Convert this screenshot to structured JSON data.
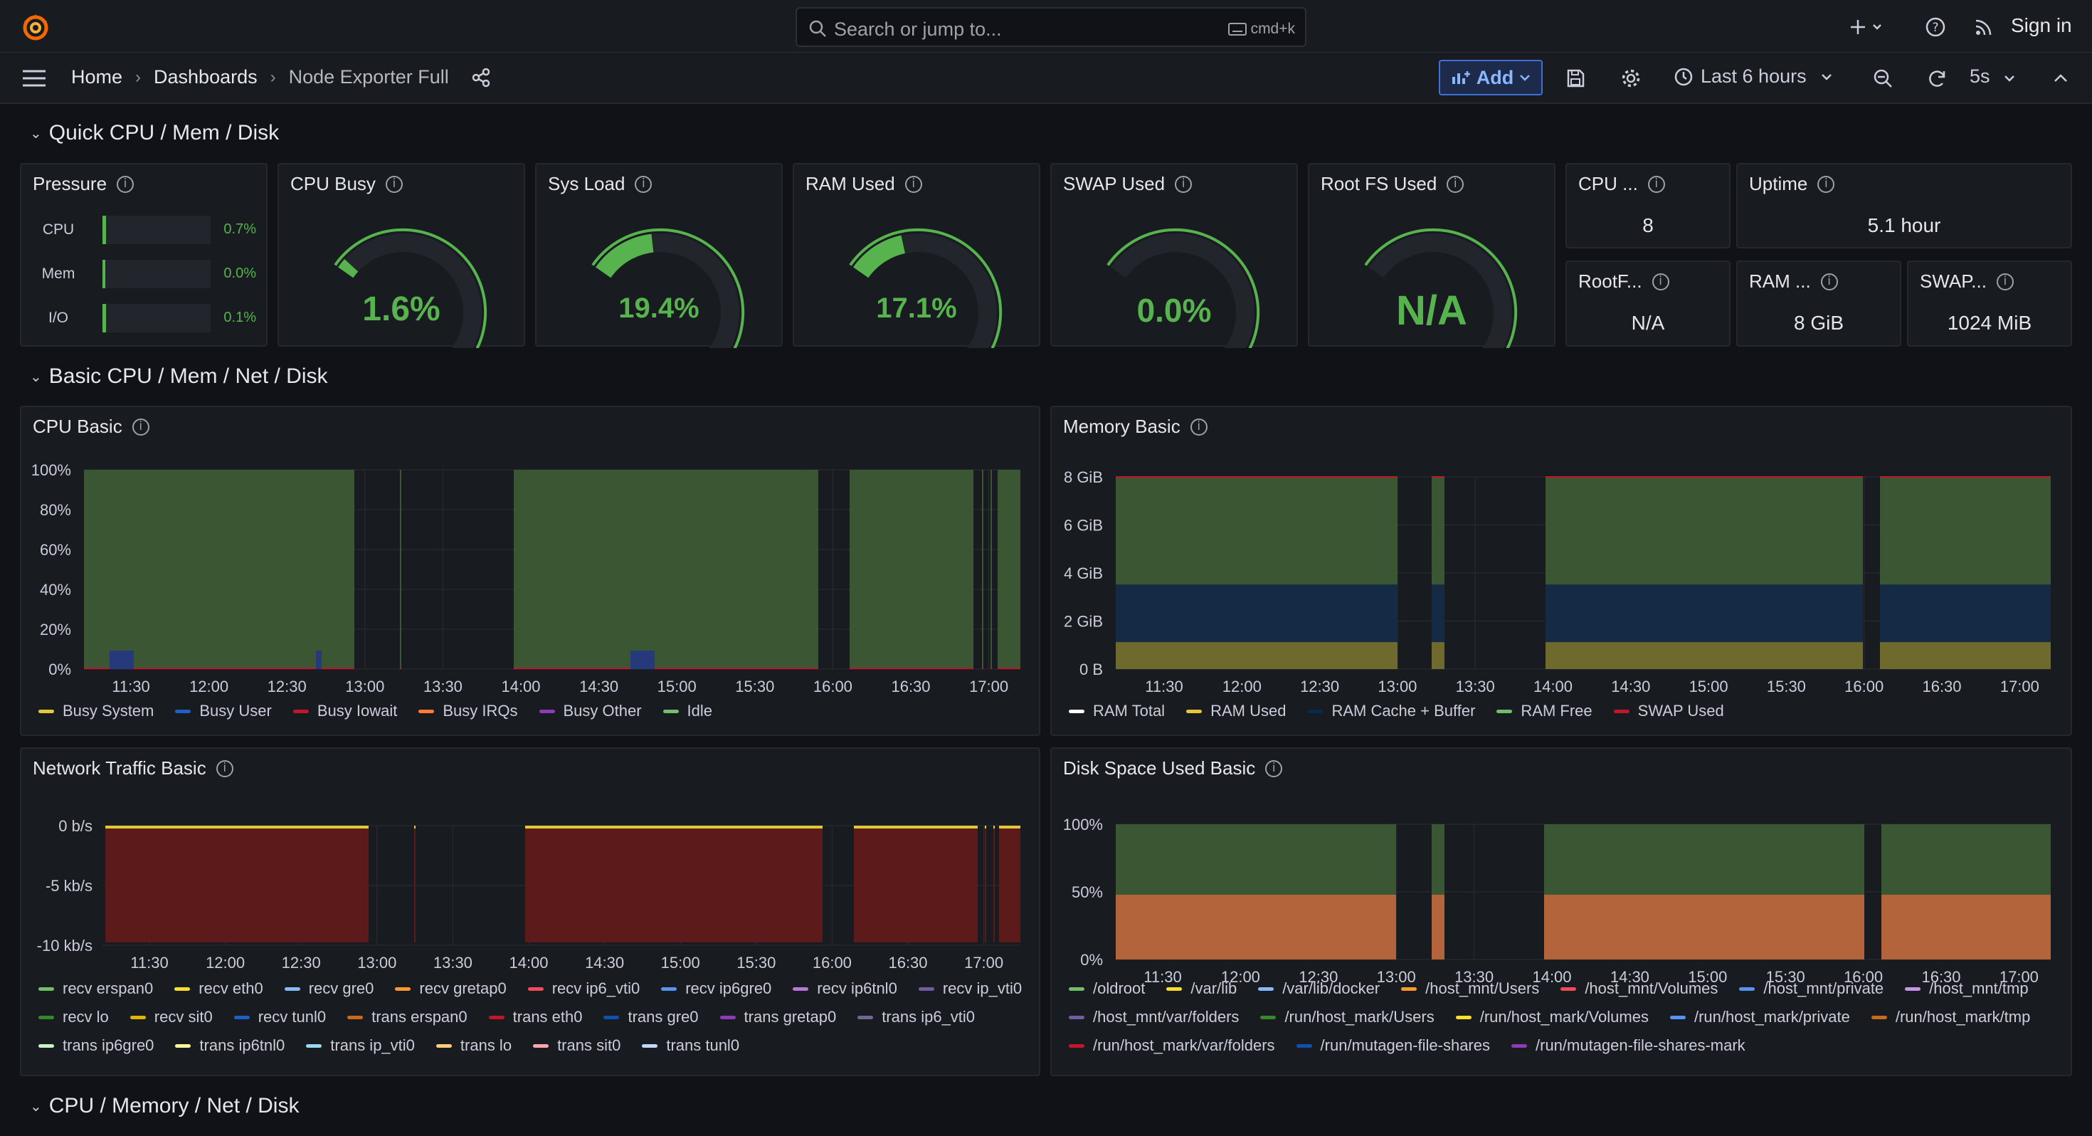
{
  "topbar": {
    "search_placeholder": "Search or jump to...",
    "search_shortcut": "cmd+k",
    "signin_label": "Sign in"
  },
  "nav": {
    "crumbs": [
      "Home",
      "Dashboards",
      "Node Exporter Full"
    ],
    "add_label": "Add",
    "time_range": "Last 6 hours",
    "refresh_interval": "5s"
  },
  "rows": {
    "r1": "Quick CPU / Mem / Disk",
    "r2": "Basic CPU / Mem / Net / Disk",
    "r3": "CPU / Memory / Net / Disk"
  },
  "colors": {
    "green": "#56b34d",
    "yellow": "#e5c838",
    "red": "#e02f44",
    "blue": "#3274d9",
    "orange": "#ff7c34"
  },
  "pressure": {
    "title": "Pressure",
    "items": [
      {
        "label": "CPU",
        "value": "0.7%",
        "fraction": 0.007
      },
      {
        "label": "Mem",
        "value": "0.0%",
        "fraction": 0.0
      },
      {
        "label": "I/O",
        "value": "0.1%",
        "fraction": 0.001
      }
    ]
  },
  "gauges": [
    {
      "title": "CPU Busy",
      "value": "1.6%",
      "fraction": 0.016
    },
    {
      "title": "Sys Load",
      "value": "19.4%",
      "fraction": 0.194
    },
    {
      "title": "RAM Used",
      "value": "17.1%",
      "fraction": 0.171
    },
    {
      "title": "SWAP Used",
      "value": "0.0%",
      "fraction": 0.0
    },
    {
      "title": "Root FS Used",
      "value": "N/A",
      "fraction": 0.0
    }
  ],
  "stats": [
    {
      "title": "CPU ...",
      "value": "8"
    },
    {
      "title": "Uptime",
      "value": "5.1 hour"
    },
    {
      "title": "RootF...",
      "value": "N/A"
    },
    {
      "title": "RAM ...",
      "value": "8 GiB"
    },
    {
      "title": "SWAP...",
      "value": "1024 MiB"
    }
  ],
  "cpu_basic": {
    "title": "CPU Basic",
    "y_ticks": [
      "100%",
      "80%",
      "60%",
      "40%",
      "20%",
      "0%"
    ],
    "x_ticks": [
      "11:30",
      "12:00",
      "12:30",
      "13:00",
      "13:30",
      "14:00",
      "14:30",
      "15:00",
      "15:30",
      "16:00",
      "16:30",
      "17:00"
    ],
    "legend": [
      {
        "name": "Busy System",
        "color": "#e5c838"
      },
      {
        "name": "Busy User",
        "color": "#1f60c4"
      },
      {
        "name": "Busy Iowait",
        "color": "#c4162a"
      },
      {
        "name": "Busy IRQs",
        "color": "#ff7c34"
      },
      {
        "name": "Busy Other",
        "color": "#8f3bb8"
      },
      {
        "name": "Idle",
        "color": "#73bf69"
      }
    ]
  },
  "memory_basic": {
    "title": "Memory Basic",
    "y_ticks": [
      "8 GiB",
      "6 GiB",
      "4 GiB",
      "2 GiB",
      "0 B"
    ],
    "x_ticks": [
      "11:30",
      "12:00",
      "12:30",
      "13:00",
      "13:30",
      "14:00",
      "14:30",
      "15:00",
      "15:30",
      "16:00",
      "16:30",
      "17:00"
    ],
    "legend": [
      {
        "name": "RAM Total",
        "color": "#ffffff"
      },
      {
        "name": "RAM Used",
        "color": "#e5c838"
      },
      {
        "name": "RAM Cache + Buffer",
        "color": "#052b51"
      },
      {
        "name": "RAM Free",
        "color": "#73bf69"
      },
      {
        "name": "SWAP Used",
        "color": "#c4162a"
      }
    ]
  },
  "network_basic": {
    "title": "Network Traffic Basic",
    "y_ticks": [
      "0 b/s",
      "-5 kb/s",
      "-10 kb/s"
    ],
    "x_ticks": [
      "11:30",
      "12:00",
      "12:30",
      "13:00",
      "13:30",
      "14:00",
      "14:30",
      "15:00",
      "15:30",
      "16:00",
      "16:30",
      "17:00"
    ],
    "legend": [
      {
        "name": "recv erspan0",
        "color": "#73bf69"
      },
      {
        "name": "recv eth0",
        "color": "#fade2a"
      },
      {
        "name": "recv gre0",
        "color": "#8ab8ff"
      },
      {
        "name": "recv gretap0",
        "color": "#ff9830"
      },
      {
        "name": "recv ip6_vti0",
        "color": "#f2495c"
      },
      {
        "name": "recv ip6gre0",
        "color": "#5794f2"
      },
      {
        "name": "recv ip6tnl0",
        "color": "#b877d9"
      },
      {
        "name": "recv ip_vti0",
        "color": "#705da0"
      },
      {
        "name": "recv lo",
        "color": "#37872d"
      },
      {
        "name": "recv sit0",
        "color": "#e0b400"
      },
      {
        "name": "recv tunl0",
        "color": "#1f60c4"
      },
      {
        "name": "trans erspan0",
        "color": "#c8691c"
      },
      {
        "name": "trans eth0",
        "color": "#c4162a"
      },
      {
        "name": "trans gre0",
        "color": "#1250b0"
      },
      {
        "name": "trans gretap0",
        "color": "#8f3bb8"
      },
      {
        "name": "trans ip6_vti0",
        "color": "#6e6893"
      },
      {
        "name": "trans ip6gre0",
        "color": "#c8f2c2"
      },
      {
        "name": "trans ip6tnl0",
        "color": "#fff899"
      },
      {
        "name": "trans ip_vti0",
        "color": "#97d9f4"
      },
      {
        "name": "trans lo",
        "color": "#ffcb7d"
      },
      {
        "name": "trans sit0",
        "color": "#ffa6b0"
      },
      {
        "name": "trans tunl0",
        "color": "#c0d8ff"
      }
    ]
  },
  "disk_basic": {
    "title": "Disk Space Used Basic",
    "y_ticks": [
      "100%",
      "50%",
      "0%"
    ],
    "x_ticks": [
      "11:30",
      "12:00",
      "12:30",
      "13:00",
      "13:30",
      "14:00",
      "14:30",
      "15:00",
      "15:30",
      "16:00",
      "16:30",
      "17:00"
    ],
    "legend": [
      {
        "name": "/oldroot",
        "color": "#73bf69"
      },
      {
        "name": "/var/lib",
        "color": "#fade2a"
      },
      {
        "name": "/var/lib/docker",
        "color": "#8ab8ff"
      },
      {
        "name": "/host_mnt/Users",
        "color": "#ff9830"
      },
      {
        "name": "/host_mnt/Volumes",
        "color": "#f2495c"
      },
      {
        "name": "/host_mnt/private",
        "color": "#5794f2"
      },
      {
        "name": "/host_mnt/tmp",
        "color": "#ca95e5"
      },
      {
        "name": "/host_mnt/var/folders",
        "color": "#705da0"
      },
      {
        "name": "/run/host_mark/Users",
        "color": "#37872d"
      },
      {
        "name": "/run/host_mark/Volumes",
        "color": "#fade2a"
      },
      {
        "name": "/run/host_mark/private",
        "color": "#5794f2"
      },
      {
        "name": "/run/host_mark/tmp",
        "color": "#c8691c"
      },
      {
        "name": "/run/host_mark/var/folders",
        "color": "#c4162a"
      },
      {
        "name": "/run/mutagen-file-shares",
        "color": "#1250b0"
      },
      {
        "name": "/run/mutagen-file-shares-mark",
        "color": "#8f3bb8"
      }
    ]
  }
}
